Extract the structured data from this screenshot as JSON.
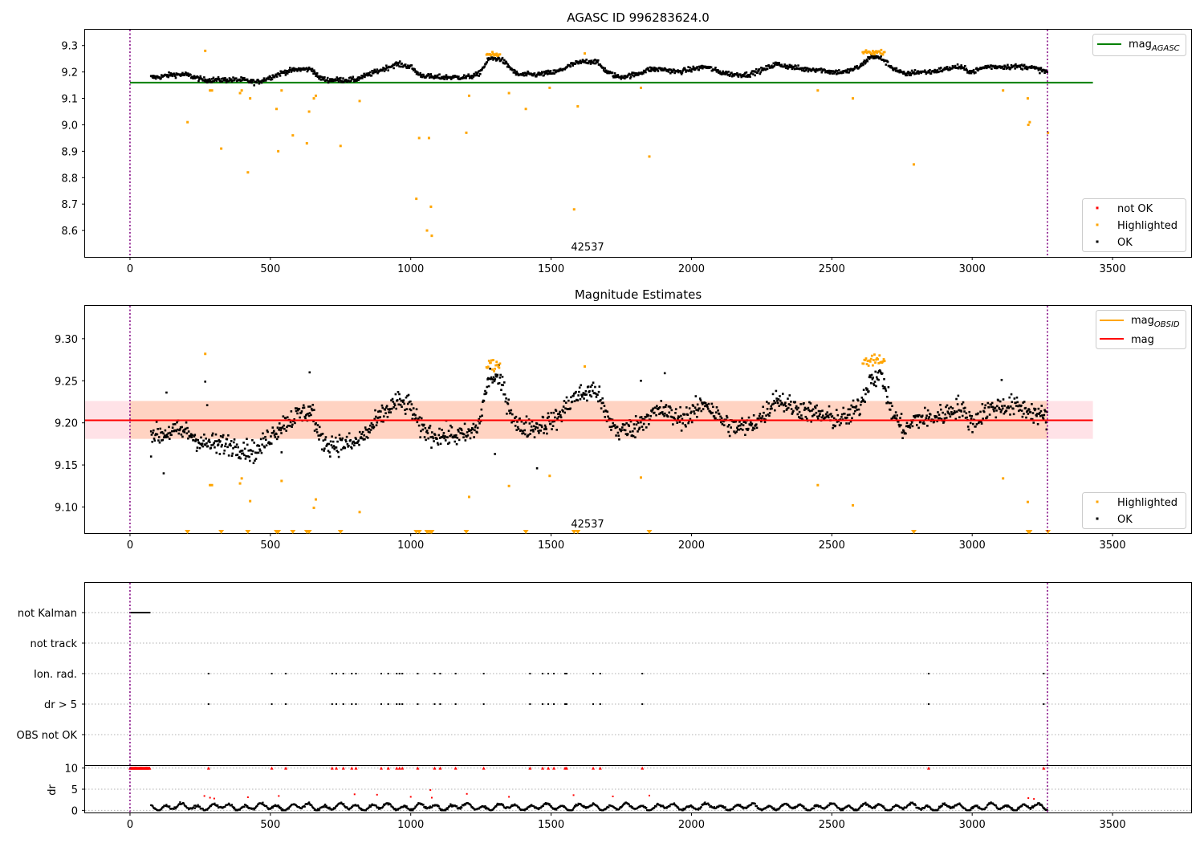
{
  "chart_data": [
    {
      "id": "top",
      "type": "scatter",
      "title": "AGASC ID 996283624.0",
      "xlabel": "",
      "ylabel": "",
      "xlim": [
        -160,
        3780
      ],
      "ylim": [
        8.5,
        9.36
      ],
      "xticks": [
        0,
        500,
        1000,
        1500,
        2000,
        2500,
        3000,
        3500
      ],
      "yticks": [
        8.6,
        8.7,
        8.8,
        8.9,
        9.0,
        9.1,
        9.2,
        9.3
      ],
      "ytick_labels": [
        "8.6",
        "8.7",
        "8.8",
        "8.9",
        "9.0",
        "9.1",
        "9.2",
        "9.3"
      ],
      "annotation": "42537",
      "annotation_x": 1630,
      "vlines": [
        0,
        3268
      ],
      "agasc_mag": 9.16,
      "agasc_range": [
        0,
        3430
      ],
      "legend_upper": [
        {
          "label": "mag",
          "subscript": "AGASC",
          "color": "#008000"
        }
      ],
      "legend_lower": [
        {
          "label": "not OK",
          "color": "#ff0000"
        },
        {
          "label": "Highlighted",
          "color": "#ffa500"
        },
        {
          "label": "OK",
          "color": "#000000"
        }
      ],
      "highlighted_points": [
        [
          205,
          9.01
        ],
        [
          268,
          9.28
        ],
        [
          285,
          9.13
        ],
        [
          292,
          9.13
        ],
        [
          325,
          8.91
        ],
        [
          392,
          9.12
        ],
        [
          398,
          9.13
        ],
        [
          420,
          8.82
        ],
        [
          428,
          9.1
        ],
        [
          522,
          9.06
        ],
        [
          528,
          8.9
        ],
        [
          540,
          9.13
        ],
        [
          580,
          8.96
        ],
        [
          630,
          8.93
        ],
        [
          638,
          9.05
        ],
        [
          655,
          9.1
        ],
        [
          662,
          9.11
        ],
        [
          750,
          8.92
        ],
        [
          818,
          9.09
        ],
        [
          1020,
          8.72
        ],
        [
          1030,
          8.95
        ],
        [
          1058,
          8.6
        ],
        [
          1065,
          8.95
        ],
        [
          1072,
          8.69
        ],
        [
          1075,
          8.58
        ],
        [
          1198,
          8.97
        ],
        [
          1208,
          9.11
        ],
        [
          1350,
          9.12
        ],
        [
          1410,
          9.06
        ],
        [
          1495,
          9.14
        ],
        [
          1582,
          8.68
        ],
        [
          1595,
          9.07
        ],
        [
          1620,
          9.27
        ],
        [
          1820,
          9.14
        ],
        [
          1850,
          8.88
        ],
        [
          2450,
          9.13
        ],
        [
          2575,
          9.1
        ],
        [
          2792,
          8.85
        ],
        [
          3110,
          9.13
        ],
        [
          3198,
          9.1
        ],
        [
          3200,
          9.0
        ],
        [
          3205,
          9.01
        ],
        [
          3270,
          8.97
        ]
      ],
      "ok_trend": [
        [
          75,
          9.18
        ],
        [
          100,
          9.18
        ],
        [
          150,
          9.19
        ],
        [
          200,
          9.19
        ],
        [
          260,
          9.17
        ],
        [
          300,
          9.17
        ],
        [
          350,
          9.17
        ],
        [
          400,
          9.17
        ],
        [
          450,
          9.16
        ],
        [
          500,
          9.18
        ],
        [
          550,
          9.2
        ],
        [
          600,
          9.21
        ],
        [
          650,
          9.21
        ],
        [
          670,
          9.18
        ],
        [
          700,
          9.17
        ],
        [
          750,
          9.17
        ],
        [
          800,
          9.17
        ],
        [
          850,
          9.19
        ],
        [
          900,
          9.21
        ],
        [
          950,
          9.23
        ],
        [
          1000,
          9.22
        ],
        [
          1030,
          9.19
        ],
        [
          1080,
          9.18
        ],
        [
          1150,
          9.18
        ],
        [
          1200,
          9.18
        ],
        [
          1240,
          9.19
        ],
        [
          1280,
          9.25
        ],
        [
          1320,
          9.25
        ],
        [
          1350,
          9.22
        ],
        [
          1380,
          9.19
        ],
        [
          1450,
          9.19
        ],
        [
          1520,
          9.2
        ],
        [
          1580,
          9.23
        ],
        [
          1620,
          9.24
        ],
        [
          1660,
          9.24
        ],
        [
          1700,
          9.2
        ],
        [
          1740,
          9.18
        ],
        [
          1800,
          9.19
        ],
        [
          1850,
          9.21
        ],
        [
          1900,
          9.21
        ],
        [
          1950,
          9.2
        ],
        [
          2000,
          9.21
        ],
        [
          2050,
          9.22
        ],
        [
          2100,
          9.2
        ],
        [
          2150,
          9.19
        ],
        [
          2200,
          9.19
        ],
        [
          2260,
          9.21
        ],
        [
          2300,
          9.23
        ],
        [
          2350,
          9.22
        ],
        [
          2400,
          9.21
        ],
        [
          2450,
          9.21
        ],
        [
          2500,
          9.2
        ],
        [
          2550,
          9.2
        ],
        [
          2600,
          9.22
        ],
        [
          2640,
          9.26
        ],
        [
          2680,
          9.25
        ],
        [
          2710,
          9.22
        ],
        [
          2760,
          9.19
        ],
        [
          2800,
          9.2
        ],
        [
          2850,
          9.2
        ],
        [
          2900,
          9.21
        ],
        [
          2950,
          9.22
        ],
        [
          3000,
          9.2
        ],
        [
          3050,
          9.22
        ],
        [
          3100,
          9.22
        ],
        [
          3150,
          9.22
        ],
        [
          3200,
          9.22
        ],
        [
          3268,
          9.2
        ]
      ],
      "highlight_clusters": [
        [
          1270,
          1320,
          9.265
        ],
        [
          2610,
          2690,
          9.275
        ]
      ]
    },
    {
      "id": "middle",
      "type": "scatter",
      "title": "Magnitude Estimates",
      "xlabel": "",
      "ylabel": "",
      "xlim": [
        -160,
        3780
      ],
      "ylim": [
        9.069,
        9.339
      ],
      "xticks": [
        0,
        500,
        1000,
        1500,
        2000,
        2500,
        3000,
        3500
      ],
      "yticks": [
        9.1,
        9.15,
        9.2,
        9.25,
        9.3
      ],
      "ytick_labels": [
        "9.10",
        "9.15",
        "9.20",
        "9.25",
        "9.30"
      ],
      "annotation": "42537",
      "annotation_x": 1630,
      "vlines": [
        0,
        3268
      ],
      "mag": 9.203,
      "mag_band": [
        9.181,
        9.226
      ],
      "mag_range": [
        -160,
        3430
      ],
      "legend_upper": [
        {
          "label": "mag",
          "subscript": "OBSID",
          "color": "#ffa500"
        },
        {
          "label": "mag",
          "subscript": "",
          "color": "#ff0000"
        }
      ],
      "legend_lower": [
        {
          "label": "Highlighted",
          "color": "#ffa500"
        },
        {
          "label": "OK",
          "color": "#000000"
        }
      ],
      "highlighted_points": [
        [
          268,
          9.282
        ],
        [
          285,
          9.126
        ],
        [
          292,
          9.126
        ],
        [
          392,
          9.128
        ],
        [
          398,
          9.134
        ],
        [
          428,
          9.107
        ],
        [
          540,
          9.131
        ],
        [
          655,
          9.099
        ],
        [
          662,
          9.109
        ],
        [
          818,
          9.094
        ],
        [
          1208,
          9.112
        ],
        [
          1350,
          9.125
        ],
        [
          1495,
          9.137
        ],
        [
          1620,
          9.267
        ],
        [
          1820,
          9.135
        ],
        [
          2450,
          9.126
        ],
        [
          2575,
          9.102
        ],
        [
          3110,
          9.134
        ],
        [
          3198,
          9.106
        ]
      ],
      "offscale_markers": [
        205,
        325,
        420,
        522,
        528,
        580,
        630,
        638,
        750,
        1020,
        1030,
        1058,
        1065,
        1072,
        1075,
        1198,
        1410,
        1582,
        1595,
        1850,
        2792,
        3200,
        3205,
        3270
      ],
      "black_outliers": [
        [
          75,
          9.16
        ],
        [
          120,
          9.14
        ],
        [
          130,
          9.236
        ],
        [
          268,
          9.249
        ],
        [
          275,
          9.221
        ],
        [
          320,
          9.163
        ],
        [
          540,
          9.165
        ],
        [
          640,
          9.26
        ],
        [
          1300,
          9.163
        ],
        [
          1450,
          9.146
        ],
        [
          1820,
          9.25
        ],
        [
          1905,
          9.259
        ],
        [
          3105,
          9.251
        ]
      ],
      "ok_trend": [
        [
          75,
          9.19
        ],
        [
          100,
          9.185
        ],
        [
          150,
          9.19
        ],
        [
          200,
          9.19
        ],
        [
          260,
          9.175
        ],
        [
          300,
          9.175
        ],
        [
          350,
          9.175
        ],
        [
          400,
          9.17
        ],
        [
          450,
          9.165
        ],
        [
          500,
          9.185
        ],
        [
          550,
          9.2
        ],
        [
          600,
          9.21
        ],
        [
          650,
          9.215
        ],
        [
          670,
          9.185
        ],
        [
          700,
          9.175
        ],
        [
          750,
          9.175
        ],
        [
          800,
          9.175
        ],
        [
          850,
          9.19
        ],
        [
          900,
          9.21
        ],
        [
          950,
          9.225
        ],
        [
          1000,
          9.22
        ],
        [
          1030,
          9.195
        ],
        [
          1080,
          9.185
        ],
        [
          1150,
          9.185
        ],
        [
          1200,
          9.185
        ],
        [
          1240,
          9.195
        ],
        [
          1280,
          9.255
        ],
        [
          1320,
          9.25
        ],
        [
          1350,
          9.22
        ],
        [
          1380,
          9.195
        ],
        [
          1450,
          9.195
        ],
        [
          1520,
          9.205
        ],
        [
          1580,
          9.23
        ],
        [
          1620,
          9.235
        ],
        [
          1660,
          9.24
        ],
        [
          1700,
          9.205
        ],
        [
          1740,
          9.19
        ],
        [
          1800,
          9.195
        ],
        [
          1850,
          9.21
        ],
        [
          1900,
          9.215
        ],
        [
          1950,
          9.205
        ],
        [
          2000,
          9.21
        ],
        [
          2050,
          9.225
        ],
        [
          2100,
          9.205
        ],
        [
          2150,
          9.195
        ],
        [
          2200,
          9.195
        ],
        [
          2260,
          9.21
        ],
        [
          2300,
          9.23
        ],
        [
          2350,
          9.22
        ],
        [
          2400,
          9.215
        ],
        [
          2450,
          9.21
        ],
        [
          2500,
          9.205
        ],
        [
          2550,
          9.205
        ],
        [
          2600,
          9.22
        ],
        [
          2640,
          9.255
        ],
        [
          2680,
          9.255
        ],
        [
          2710,
          9.215
        ],
        [
          2760,
          9.19
        ],
        [
          2800,
          9.205
        ],
        [
          2850,
          9.205
        ],
        [
          2900,
          9.21
        ],
        [
          2950,
          9.22
        ],
        [
          3000,
          9.2
        ],
        [
          3050,
          9.215
        ],
        [
          3100,
          9.22
        ],
        [
          3150,
          9.22
        ],
        [
          3200,
          9.215
        ],
        [
          3268,
          9.205
        ]
      ],
      "highlight_clusters": [
        [
          1270,
          1320,
          9.268
        ],
        [
          2610,
          2690,
          9.275
        ]
      ]
    },
    {
      "id": "flags",
      "type": "scatter",
      "title": "",
      "xlim": [
        -160,
        3780
      ],
      "categories": [
        "not Kalman",
        "not track",
        "Ion. rad.",
        "dr > 5",
        "OBS not OK"
      ],
      "vlines": [
        0,
        3268
      ],
      "not_kalman_range": [
        0,
        70
      ],
      "ion_rad_x": [
        280,
        505,
        555,
        720,
        735,
        760,
        790,
        805,
        895,
        920,
        950,
        960,
        970,
        1025,
        1085,
        1105,
        1160,
        1260,
        1425,
        1470,
        1490,
        1510,
        1550,
        1555,
        1650,
        1675,
        1825,
        2845,
        3255
      ],
      "dr_gt5_x": [
        280,
        505,
        555,
        720,
        735,
        760,
        790,
        805,
        895,
        920,
        950,
        960,
        970,
        1025,
        1085,
        1105,
        1160,
        1260,
        1425,
        1470,
        1490,
        1510,
        1550,
        1555,
        1650,
        1675,
        1825,
        2845,
        3255
      ]
    },
    {
      "id": "dr",
      "type": "scatter",
      "title": "",
      "ylabel": "dr",
      "xlim": [
        -160,
        3780
      ],
      "ylim": [
        -0.5,
        10.5
      ],
      "xticks": [
        0,
        500,
        1000,
        1500,
        2000,
        2500,
        3000,
        3500
      ],
      "yticks": [
        0,
        5,
        10
      ],
      "ytick_labels": [
        "0",
        "5",
        "10"
      ],
      "vlines": [
        0,
        3268
      ],
      "clipped_range": [
        0,
        70
      ],
      "clipped_x": [
        280,
        505,
        555,
        720,
        735,
        760,
        790,
        805,
        895,
        920,
        950,
        960,
        970,
        1025,
        1085,
        1105,
        1160,
        1260,
        1425,
        1470,
        1490,
        1510,
        1550,
        1555,
        1650,
        1675,
        1825,
        2845,
        3255
      ],
      "red_points": [
        [
          265,
          3.4
        ],
        [
          285,
          3.0
        ],
        [
          300,
          2.8
        ],
        [
          420,
          3.1
        ],
        [
          530,
          3.4
        ],
        [
          800,
          3.8
        ],
        [
          880,
          3.7
        ],
        [
          1000,
          3.2
        ],
        [
          1070,
          4.8
        ],
        [
          1075,
          3.0
        ],
        [
          1200,
          3.9
        ],
        [
          1350,
          3.2
        ],
        [
          1580,
          3.6
        ],
        [
          1720,
          3.3
        ],
        [
          1850,
          3.5
        ],
        [
          3200,
          2.9
        ],
        [
          3220,
          2.7
        ]
      ]
    }
  ]
}
